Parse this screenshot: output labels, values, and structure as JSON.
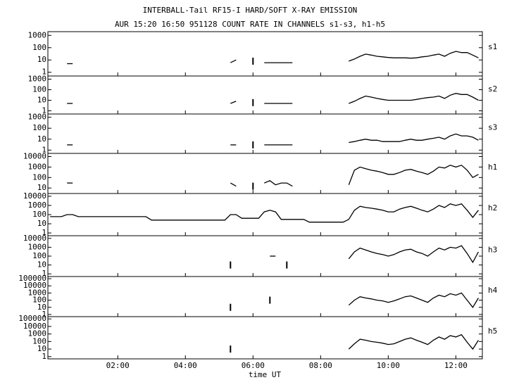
{
  "chart_data": {
    "type": "line",
    "title": "INTERBALL-Tail RF15-I HARD/SOFT X-RAY EMISSION",
    "subtitle": "AUR 15:20 16:50 951128  COUNT RATE IN CHANNELS s1-s3, h1-h5",
    "xlabel": "time UT",
    "color": "#000000",
    "log_scale": true,
    "grid": false,
    "xlim": [
      -4,
      767
    ],
    "xticks": [
      {
        "value": 120,
        "label": "02:00"
      },
      {
        "value": 240,
        "label": "04:00"
      },
      {
        "value": 360,
        "label": "06:00"
      },
      {
        "value": 480,
        "label": "08:00"
      },
      {
        "value": 600,
        "label": "10:00"
      },
      {
        "value": 720,
        "label": "12:00"
      }
    ],
    "x": [
      0,
      10,
      20,
      30,
      40,
      50,
      60,
      70,
      80,
      90,
      100,
      110,
      120,
      130,
      140,
      150,
      160,
      170,
      180,
      190,
      200,
      210,
      220,
      230,
      240,
      250,
      260,
      270,
      280,
      290,
      300,
      310,
      320,
      330,
      340,
      350,
      360,
      370,
      380,
      390,
      400,
      410,
      420,
      430,
      440,
      450,
      460,
      470,
      480,
      490,
      500,
      510,
      520,
      530,
      540,
      550,
      560,
      570,
      580,
      590,
      600,
      610,
      620,
      630,
      640,
      650,
      660,
      670,
      680,
      690,
      700,
      710,
      720,
      730,
      740,
      750,
      760
    ],
    "series": [
      {
        "name": "s1",
        "ylim": [
          0.5,
          2000
        ],
        "yticks": [
          1,
          10,
          100,
          1000
        ],
        "values": [
          null,
          null,
          null,
          5,
          5,
          null,
          null,
          null,
          null,
          null,
          null,
          null,
          null,
          null,
          null,
          null,
          null,
          null,
          null,
          null,
          null,
          null,
          null,
          null,
          null,
          null,
          null,
          null,
          null,
          null,
          null,
          null,
          6,
          10,
          null,
          null,
          8,
          null,
          6,
          6,
          6,
          6,
          6,
          6,
          null,
          null,
          null,
          null,
          null,
          null,
          null,
          null,
          null,
          8,
          12,
          20,
          30,
          25,
          20,
          18,
          16,
          15,
          15,
          15,
          14,
          15,
          18,
          20,
          25,
          30,
          20,
          35,
          50,
          40,
          40,
          25,
          15
        ]
      },
      {
        "name": "s2",
        "ylim": [
          0.5,
          2000
        ],
        "yticks": [
          1,
          10,
          100,
          1000
        ],
        "values": [
          null,
          null,
          null,
          5,
          5,
          null,
          null,
          null,
          null,
          null,
          null,
          null,
          null,
          null,
          null,
          null,
          null,
          null,
          null,
          null,
          null,
          null,
          null,
          null,
          null,
          null,
          null,
          null,
          null,
          null,
          null,
          null,
          5,
          8,
          null,
          null,
          6,
          null,
          5,
          5,
          5,
          5,
          5,
          5,
          null,
          null,
          null,
          null,
          null,
          null,
          null,
          null,
          null,
          5,
          8,
          15,
          25,
          20,
          15,
          12,
          10,
          10,
          10,
          10,
          10,
          12,
          15,
          18,
          20,
          25,
          15,
          30,
          45,
          35,
          35,
          20,
          10
        ]
      },
      {
        "name": "s3",
        "ylim": [
          0.5,
          2000
        ],
        "yticks": [
          1,
          10,
          100,
          1000
        ],
        "values": [
          null,
          null,
          null,
          3,
          3,
          null,
          null,
          null,
          null,
          null,
          null,
          null,
          null,
          null,
          null,
          null,
          null,
          null,
          null,
          null,
          null,
          null,
          null,
          null,
          null,
          null,
          null,
          null,
          null,
          null,
          null,
          null,
          3,
          3,
          null,
          null,
          3,
          null,
          3,
          3,
          3,
          3,
          3,
          3,
          null,
          null,
          null,
          null,
          null,
          null,
          null,
          null,
          null,
          5,
          6,
          8,
          10,
          8,
          8,
          6,
          6,
          6,
          6,
          8,
          10,
          8,
          8,
          10,
          12,
          15,
          10,
          20,
          30,
          20,
          20,
          15,
          8
        ]
      },
      {
        "name": "h1",
        "ylim": [
          3,
          20000
        ],
        "yticks": [
          10,
          100,
          1000,
          10000
        ],
        "values": [
          null,
          null,
          null,
          30,
          30,
          null,
          null,
          null,
          null,
          null,
          null,
          null,
          null,
          null,
          null,
          null,
          null,
          null,
          null,
          null,
          null,
          null,
          null,
          null,
          null,
          null,
          null,
          null,
          null,
          null,
          null,
          null,
          30,
          15,
          null,
          null,
          15,
          null,
          30,
          50,
          20,
          30,
          30,
          15,
          null,
          null,
          null,
          null,
          null,
          null,
          null,
          null,
          null,
          20,
          500,
          1000,
          700,
          500,
          400,
          300,
          200,
          200,
          300,
          500,
          600,
          400,
          300,
          200,
          400,
          1000,
          800,
          1500,
          1000,
          1500,
          500,
          100,
          200
        ]
      },
      {
        "name": "h2",
        "ylim": [
          0.5,
          20000
        ],
        "yticks": [
          1,
          10,
          100,
          1000,
          10000
        ],
        "values": [
          60,
          60,
          60,
          100,
          100,
          60,
          60,
          60,
          60,
          60,
          60,
          60,
          60,
          60,
          60,
          60,
          60,
          60,
          25,
          25,
          25,
          25,
          25,
          25,
          25,
          25,
          25,
          25,
          25,
          25,
          25,
          25,
          100,
          100,
          40,
          40,
          40,
          40,
          200,
          300,
          200,
          30,
          30,
          30,
          30,
          30,
          15,
          15,
          15,
          15,
          15,
          15,
          15,
          30,
          300,
          800,
          600,
          500,
          400,
          300,
          200,
          200,
          400,
          600,
          800,
          500,
          300,
          200,
          400,
          1000,
          600,
          1500,
          1000,
          1500,
          300,
          50,
          300
        ]
      },
      {
        "name": "h3",
        "ylim": [
          0.5,
          20000
        ],
        "yticks": [
          1,
          10,
          100,
          1000,
          10000
        ],
        "values": [
          null,
          null,
          null,
          null,
          null,
          null,
          null,
          null,
          null,
          null,
          null,
          null,
          null,
          null,
          null,
          null,
          null,
          null,
          null,
          null,
          null,
          null,
          null,
          null,
          null,
          null,
          null,
          null,
          null,
          null,
          null,
          null,
          10,
          null,
          null,
          null,
          null,
          null,
          null,
          100,
          100,
          null,
          10,
          null,
          null,
          null,
          null,
          null,
          null,
          null,
          null,
          null,
          null,
          50,
          300,
          800,
          500,
          300,
          200,
          150,
          100,
          150,
          300,
          500,
          600,
          300,
          200,
          100,
          300,
          800,
          500,
          1000,
          800,
          1500,
          200,
          20,
          300
        ]
      },
      {
        "name": "h4",
        "ylim": [
          0.5,
          200000
        ],
        "yticks": [
          1,
          10,
          100,
          1000,
          10000,
          100000
        ],
        "values": [
          null,
          null,
          null,
          null,
          null,
          null,
          null,
          null,
          null,
          null,
          null,
          null,
          null,
          null,
          null,
          null,
          null,
          null,
          null,
          null,
          null,
          null,
          null,
          null,
          null,
          null,
          null,
          null,
          null,
          null,
          null,
          null,
          10,
          null,
          null,
          null,
          null,
          null,
          null,
          100,
          null,
          null,
          null,
          null,
          null,
          null,
          null,
          null,
          null,
          null,
          null,
          null,
          null,
          20,
          100,
          300,
          200,
          150,
          100,
          80,
          50,
          80,
          150,
          300,
          400,
          200,
          100,
          50,
          200,
          500,
          300,
          800,
          500,
          1000,
          100,
          10,
          200
        ]
      },
      {
        "name": "h5",
        "ylim": [
          0.5,
          200000
        ],
        "yticks": [
          1,
          10,
          100,
          1000,
          10000,
          100000
        ],
        "values": [
          null,
          null,
          null,
          null,
          null,
          null,
          null,
          null,
          null,
          null,
          null,
          null,
          null,
          null,
          null,
          null,
          null,
          null,
          null,
          null,
          null,
          null,
          null,
          null,
          null,
          null,
          null,
          null,
          null,
          null,
          null,
          null,
          10,
          null,
          null,
          null,
          null,
          null,
          null,
          null,
          null,
          null,
          null,
          null,
          null,
          null,
          null,
          null,
          null,
          null,
          null,
          null,
          null,
          10,
          50,
          200,
          150,
          100,
          80,
          60,
          40,
          50,
          100,
          200,
          300,
          150,
          80,
          40,
          150,
          400,
          200,
          600,
          400,
          800,
          80,
          10,
          150
        ]
      }
    ]
  }
}
